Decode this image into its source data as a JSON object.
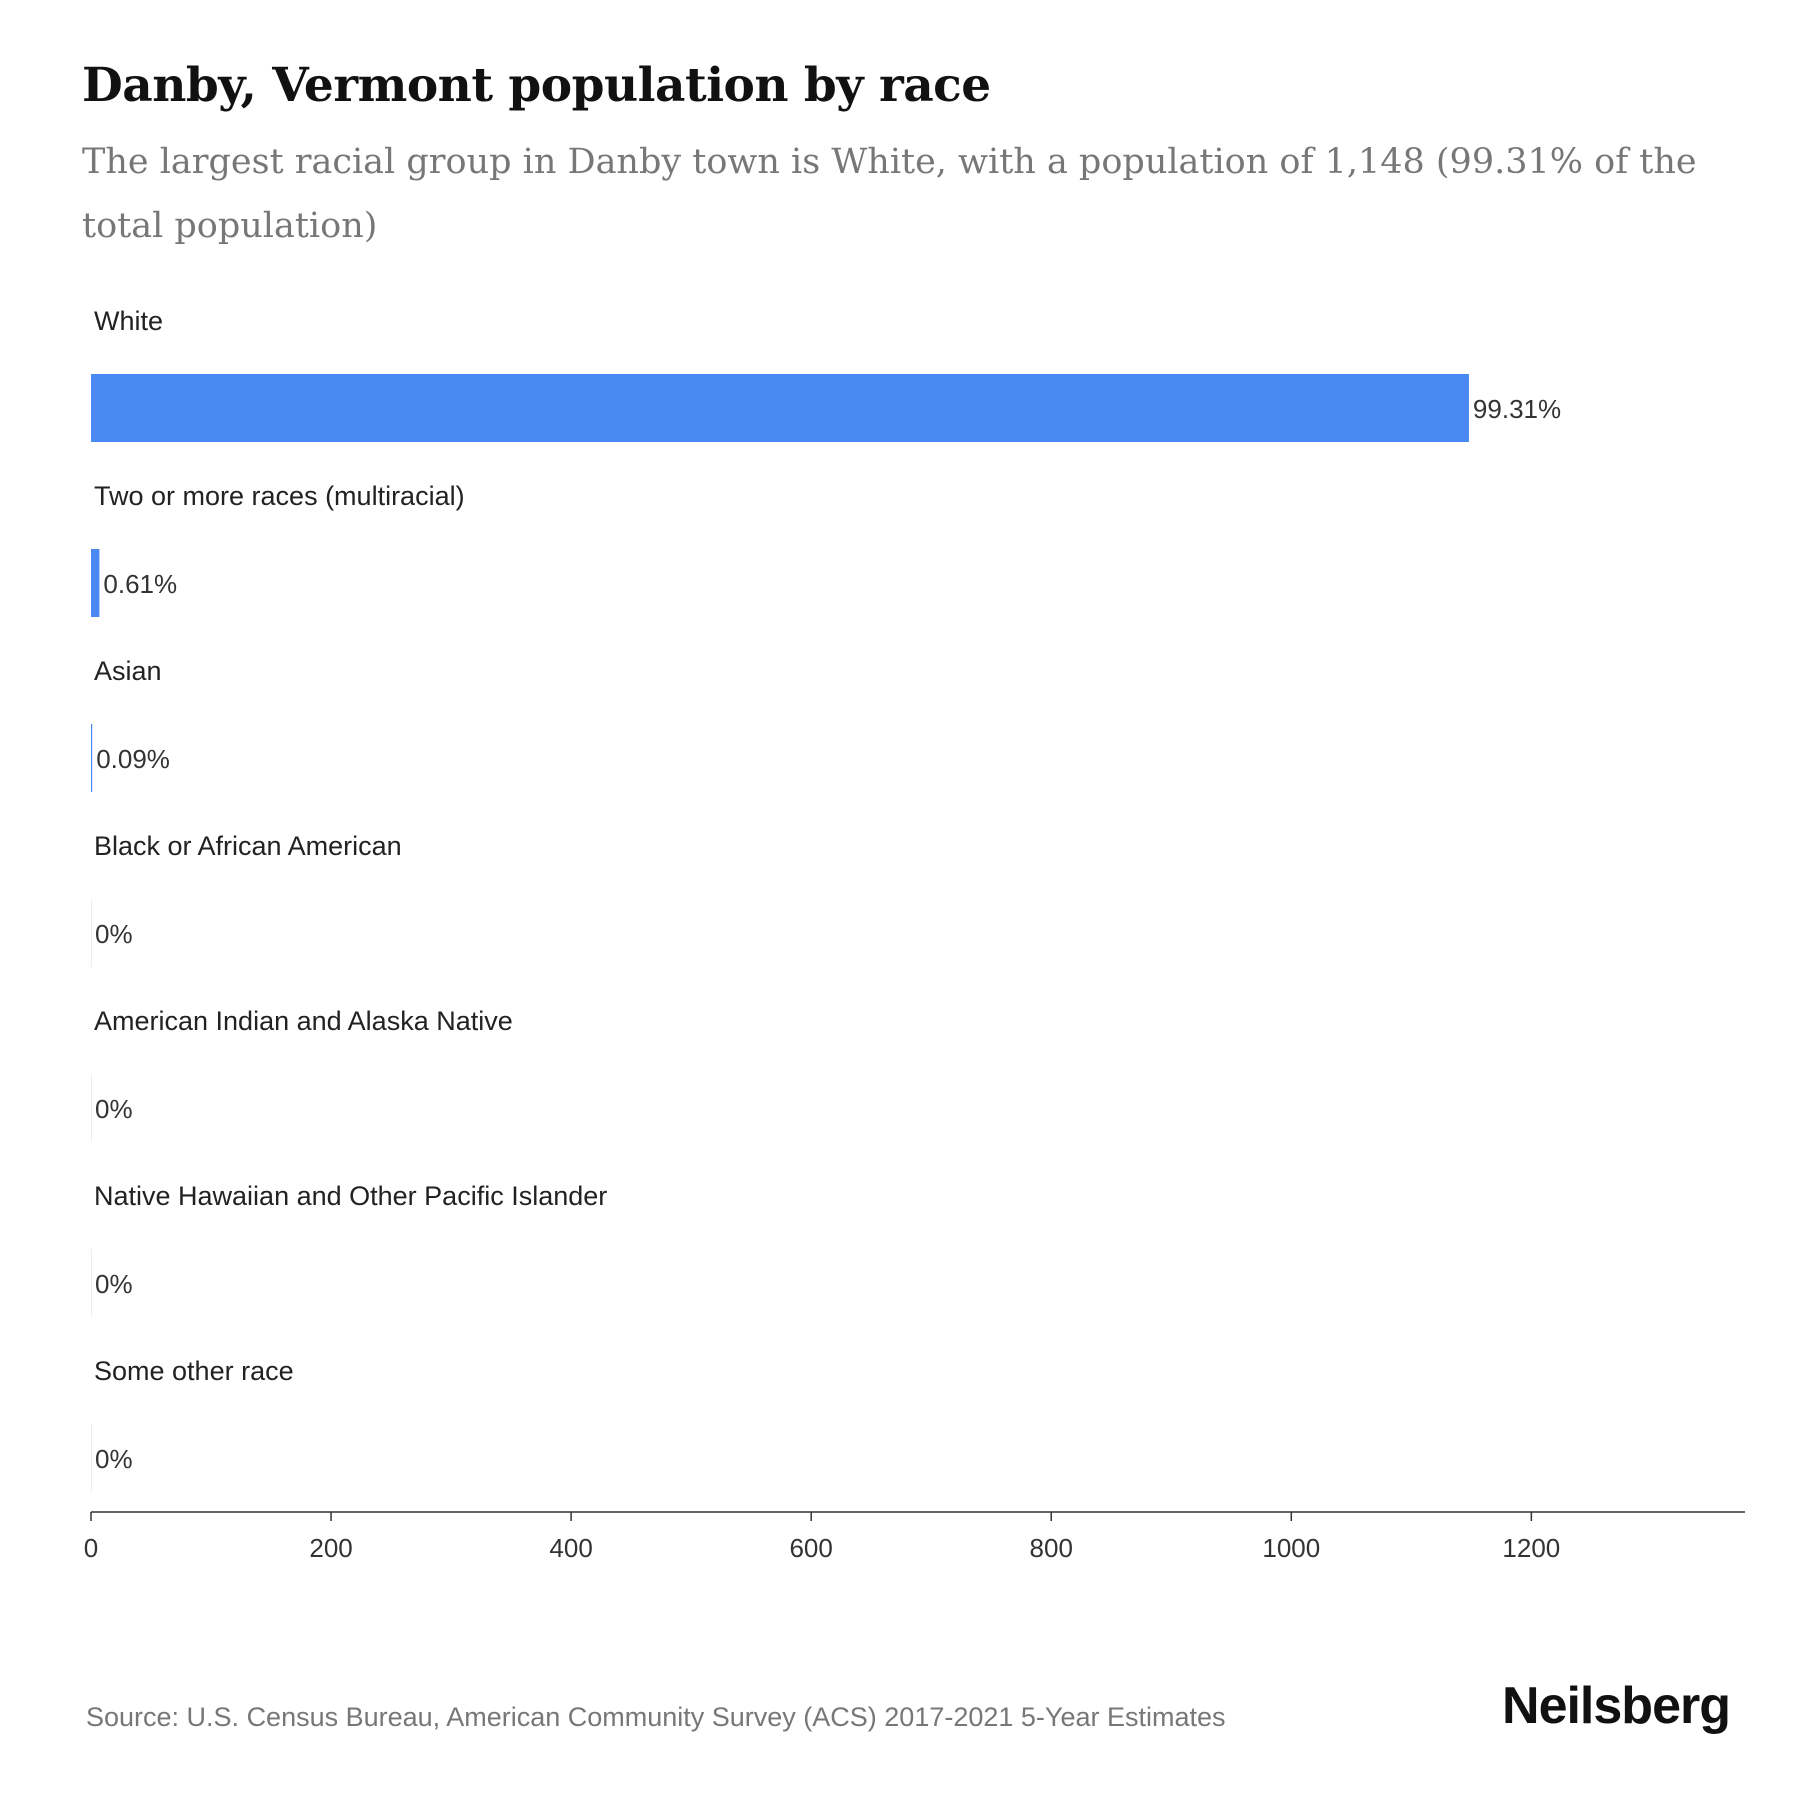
{
  "header": {
    "title": "Danby, Vermont population by race",
    "subtitle": "The largest racial group in Danby town is White, with a population of 1,148 (99.31% of the total population)"
  },
  "footer": {
    "source": "Source: U.S. Census Bureau, American Community Survey (ACS) 2017-2021 5-Year Estimates",
    "logo": "Neilsberg"
  },
  "colors": {
    "bar": "#4a89f3",
    "axis": "#333333"
  },
  "chart_data": {
    "type": "bar",
    "orientation": "horizontal",
    "categories": [
      "White",
      "Two or more races (multiracial)",
      "Asian",
      "Black or African American",
      "American Indian and Alaska Native",
      "Native Hawaiian and Other Pacific Islander",
      "Some other race"
    ],
    "values": [
      1148,
      7,
      1,
      0,
      0,
      0,
      0
    ],
    "value_labels": [
      "99.31%",
      "0.61%",
      "0.09%",
      "0%",
      "0%",
      "0%",
      "0%"
    ],
    "xlim": [
      0,
      1378
    ],
    "xticks": [
      0,
      200,
      400,
      600,
      800,
      1000,
      1200
    ],
    "grid": false,
    "legend": "none"
  }
}
